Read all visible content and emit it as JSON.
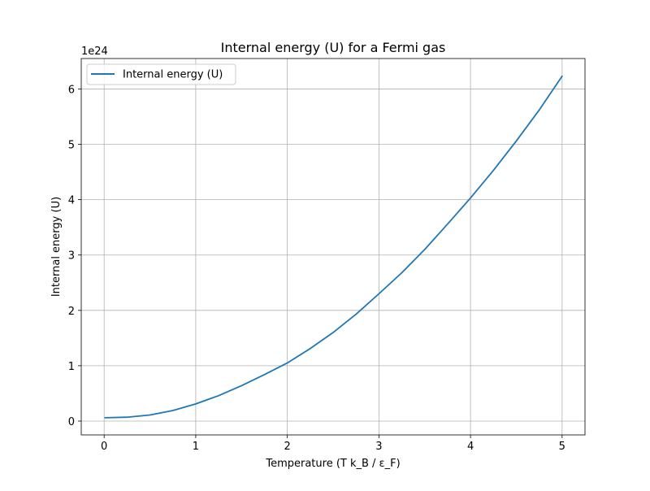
{
  "chart_data": {
    "type": "line",
    "title": "Internal energy (U) for a Fermi gas",
    "xlabel": "Temperature (T k_B / ε_F)",
    "ylabel": "Internal energy (U)",
    "y_offset_label": "1e24",
    "y_scale_factor": 1e+24,
    "xlim": [
      -0.25,
      5.25
    ],
    "ylim": [
      -0.25,
      6.55
    ],
    "x_ticks": [
      0,
      1,
      2,
      3,
      4,
      5
    ],
    "x_tick_labels": [
      "0",
      "1",
      "2",
      "3",
      "4",
      "5"
    ],
    "y_ticks": [
      0,
      1,
      2,
      3,
      4,
      5,
      6
    ],
    "y_tick_labels": [
      "0",
      "1",
      "2",
      "3",
      "4",
      "5",
      "6"
    ],
    "grid": true,
    "legend_position": "top-left",
    "series": [
      {
        "name": "Internal energy (U)",
        "color": "#1f77b4",
        "x": [
          0.01,
          0.25,
          0.5,
          0.75,
          1.0,
          1.25,
          1.5,
          1.75,
          2.0,
          2.25,
          2.5,
          2.75,
          3.0,
          3.25,
          3.5,
          3.75,
          4.0,
          4.25,
          4.5,
          4.75,
          5.0
        ],
        "y": [
          0.06,
          0.07,
          0.11,
          0.19,
          0.31,
          0.46,
          0.64,
          0.84,
          1.05,
          1.31,
          1.6,
          1.93,
          2.3,
          2.68,
          3.1,
          3.56,
          4.03,
          4.53,
          5.06,
          5.62,
          6.23
        ]
      }
    ]
  }
}
